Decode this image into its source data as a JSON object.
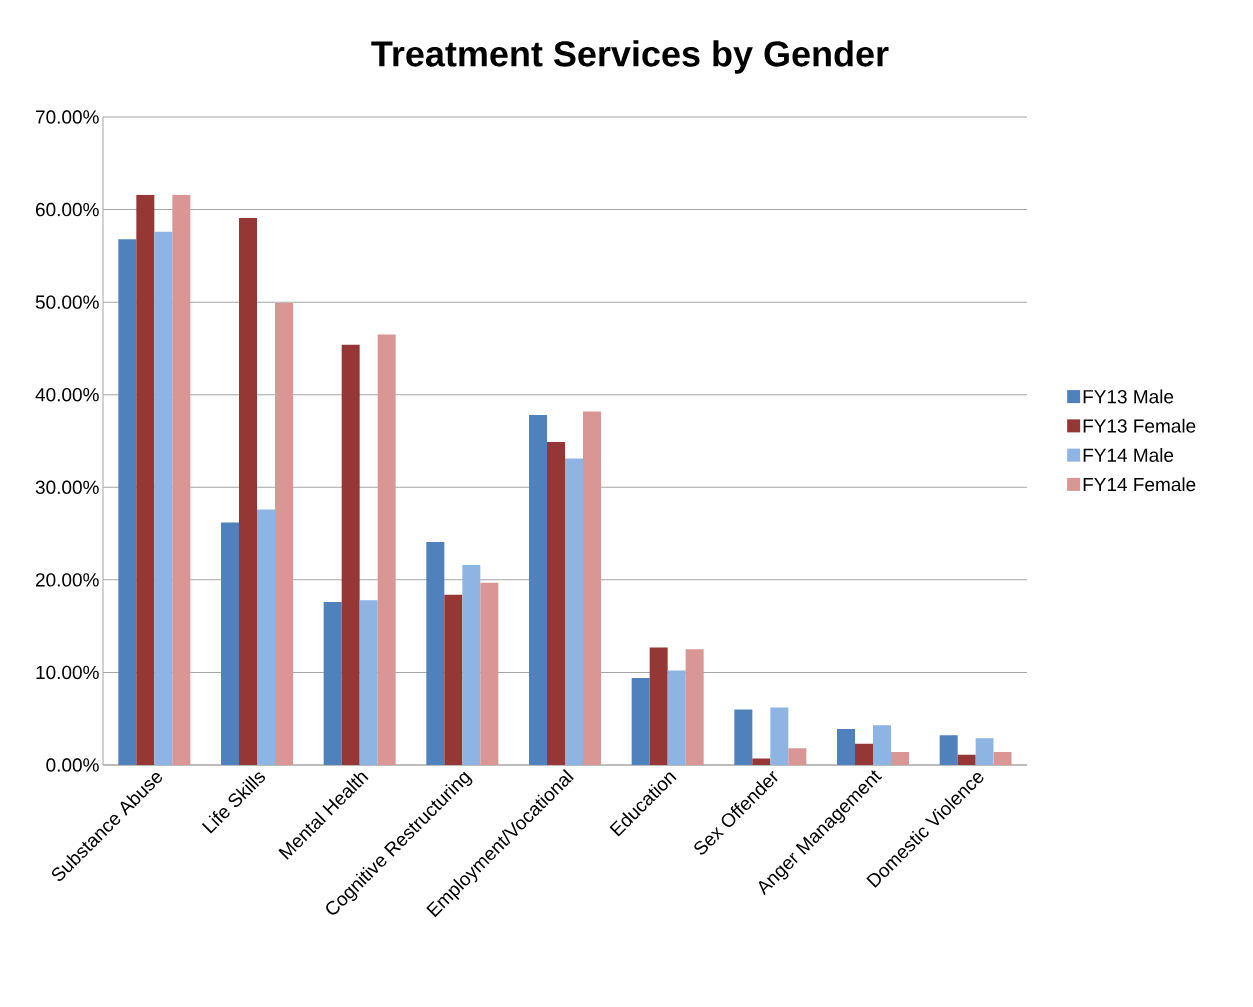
{
  "chart_data": {
    "type": "bar",
    "title": "Treatment Services by Gender",
    "categories": [
      "Substance Abuse",
      "Life Skills",
      "Mental Health",
      "Cognitive Restructuring",
      "Employment/Vocational",
      "Education",
      "Sex Offender",
      "Anger Management",
      "Domestic Violence"
    ],
    "series": [
      {
        "name": "FY13 Male",
        "color": "#4f81bd",
        "values": [
          56.8,
          26.2,
          17.6,
          24.1,
          37.8,
          9.4,
          6.0,
          3.9,
          3.2
        ]
      },
      {
        "name": "FY13 Female",
        "color": "#953735",
        "values": [
          61.6,
          59.1,
          45.4,
          18.4,
          34.9,
          12.7,
          0.7,
          2.3,
          1.1
        ]
      },
      {
        "name": "FY14 Male",
        "color": "#8eb4e3",
        "values": [
          57.6,
          27.6,
          17.8,
          21.6,
          33.1,
          10.2,
          6.2,
          4.3,
          2.9
        ]
      },
      {
        "name": "FY14 Female",
        "color": "#d99694",
        "values": [
          61.6,
          49.9,
          46.5,
          19.7,
          38.2,
          12.5,
          1.8,
          1.4,
          1.4
        ]
      }
    ],
    "ylim": [
      0,
      70
    ],
    "yticks": [
      {
        "value": 0,
        "label": "0.00%"
      },
      {
        "value": 10,
        "label": "10.00%"
      },
      {
        "value": 20,
        "label": "20.00%"
      },
      {
        "value": 30,
        "label": "30.00%"
      },
      {
        "value": 40,
        "label": "40.00%"
      },
      {
        "value": 50,
        "label": "50.00%"
      },
      {
        "value": 60,
        "label": "60.00%"
      },
      {
        "value": 70,
        "label": "70.00%"
      }
    ],
    "grid": "y",
    "legend": "right"
  }
}
